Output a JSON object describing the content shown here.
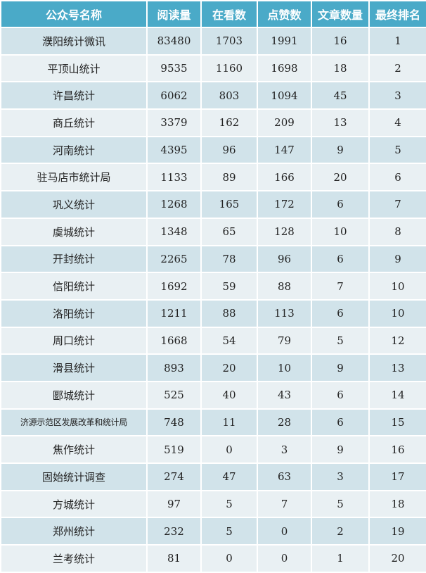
{
  "colors": {
    "header_bg": "#4aaac8",
    "row_odd": "#d1e3ea",
    "row_even": "#e9f0f3"
  },
  "headers": [
    "公众号名称",
    "阅读量",
    "在看数",
    "点赞数",
    "文章数量",
    "最终排名"
  ],
  "rows": [
    [
      "濮阳统计微讯",
      "83480",
      "1703",
      "1991",
      "16",
      "1"
    ],
    [
      "平顶山统计",
      "9535",
      "1160",
      "1698",
      "18",
      "2"
    ],
    [
      "许昌统计",
      "6062",
      "803",
      "1094",
      "45",
      "3"
    ],
    [
      "商丘统计",
      "3379",
      "162",
      "209",
      "13",
      "4"
    ],
    [
      "河南统计",
      "4395",
      "96",
      "147",
      "9",
      "5"
    ],
    [
      "驻马店市统计局",
      "1133",
      "89",
      "166",
      "20",
      "6"
    ],
    [
      "巩义统计",
      "1268",
      "165",
      "172",
      "6",
      "7"
    ],
    [
      "虞城统计",
      "1348",
      "65",
      "128",
      "10",
      "8"
    ],
    [
      "开封统计",
      "2265",
      "78",
      "96",
      "6",
      "9"
    ],
    [
      "信阳统计",
      "1692",
      "59",
      "88",
      "7",
      "10"
    ],
    [
      "洛阳统计",
      "1211",
      "88",
      "113",
      "6",
      "10"
    ],
    [
      "周口统计",
      "1668",
      "54",
      "79",
      "5",
      "12"
    ],
    [
      "滑县统计",
      "893",
      "20",
      "10",
      "9",
      "13"
    ],
    [
      "郾城统计",
      "525",
      "40",
      "43",
      "6",
      "14"
    ],
    [
      "济源示范区发展改革和统计局",
      "748",
      "11",
      "28",
      "6",
      "15"
    ],
    [
      "焦作统计",
      "519",
      "0",
      "3",
      "9",
      "16"
    ],
    [
      "固始统计调查",
      "274",
      "47",
      "63",
      "3",
      "17"
    ],
    [
      "方城统计",
      "97",
      "5",
      "7",
      "5",
      "18"
    ],
    [
      "郑州统计",
      "232",
      "5",
      "0",
      "2",
      "19"
    ],
    [
      "兰考统计",
      "81",
      "0",
      "0",
      "1",
      "20"
    ]
  ]
}
